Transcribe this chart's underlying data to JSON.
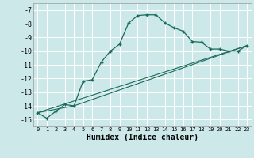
{
  "xlabel": "Humidex (Indice chaleur)",
  "bg_color": "#cce8e8",
  "grid_color": "#ffffff",
  "line_color": "#1a6b5a",
  "xlim": [
    -0.5,
    23.5
  ],
  "ylim": [
    -15.5,
    -6.5
  ],
  "yticks": [
    -7,
    -8,
    -9,
    -10,
    -11,
    -12,
    -13,
    -14,
    -15
  ],
  "xticks": [
    0,
    1,
    2,
    3,
    4,
    5,
    6,
    7,
    8,
    9,
    10,
    11,
    12,
    13,
    14,
    15,
    16,
    17,
    18,
    19,
    20,
    21,
    22,
    23
  ],
  "line1_x": [
    0,
    1,
    2,
    3,
    4,
    5,
    6,
    7,
    8,
    9,
    10,
    11,
    12,
    13,
    14,
    15,
    16,
    17,
    18,
    19,
    20,
    21,
    22,
    23
  ],
  "line1_y": [
    -14.5,
    -14.9,
    -14.4,
    -13.9,
    -14.0,
    -12.2,
    -12.1,
    -10.8,
    -10.0,
    -9.5,
    -7.95,
    -7.4,
    -7.35,
    -7.35,
    -7.95,
    -8.3,
    -8.55,
    -9.3,
    -9.35,
    -9.85,
    -9.85,
    -10.0,
    -10.0,
    -9.6
  ],
  "line2_x": [
    0,
    23
  ],
  "line2_y": [
    -14.5,
    -9.6
  ],
  "line3_x": [
    0,
    4,
    23
  ],
  "line3_y": [
    -14.5,
    -14.0,
    -9.6
  ],
  "font_family": "monospace"
}
